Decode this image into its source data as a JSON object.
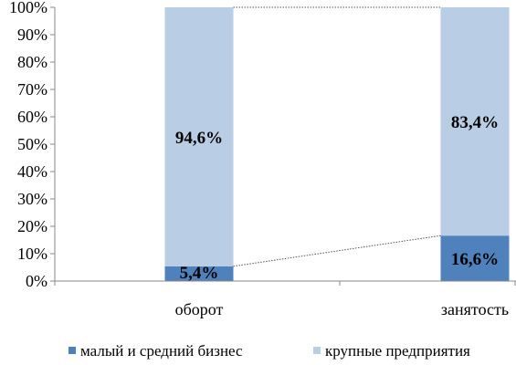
{
  "chart_data": {
    "type": "bar",
    "stacked": "percent",
    "categories": [
      "оборот",
      "занятость"
    ],
    "series": [
      {
        "name": "малый и средний бизнес",
        "color": "#4f81bd",
        "values": [
          5.4,
          16.6
        ],
        "labels": [
          "5,4%",
          "16,6%"
        ]
      },
      {
        "name": "крупные предприятия",
        "color": "#b9cde5",
        "values": [
          94.6,
          83.4
        ],
        "labels": [
          "94,6%",
          "83,4%"
        ]
      }
    ],
    "yticks": [
      "0%",
      "10%",
      "20%",
      "30%",
      "40%",
      "50%",
      "60%",
      "70%",
      "80%",
      "90%",
      "100%"
    ],
    "ylim": [
      0,
      100
    ],
    "series_lines": true,
    "legend": "bottom",
    "grid": false
  }
}
